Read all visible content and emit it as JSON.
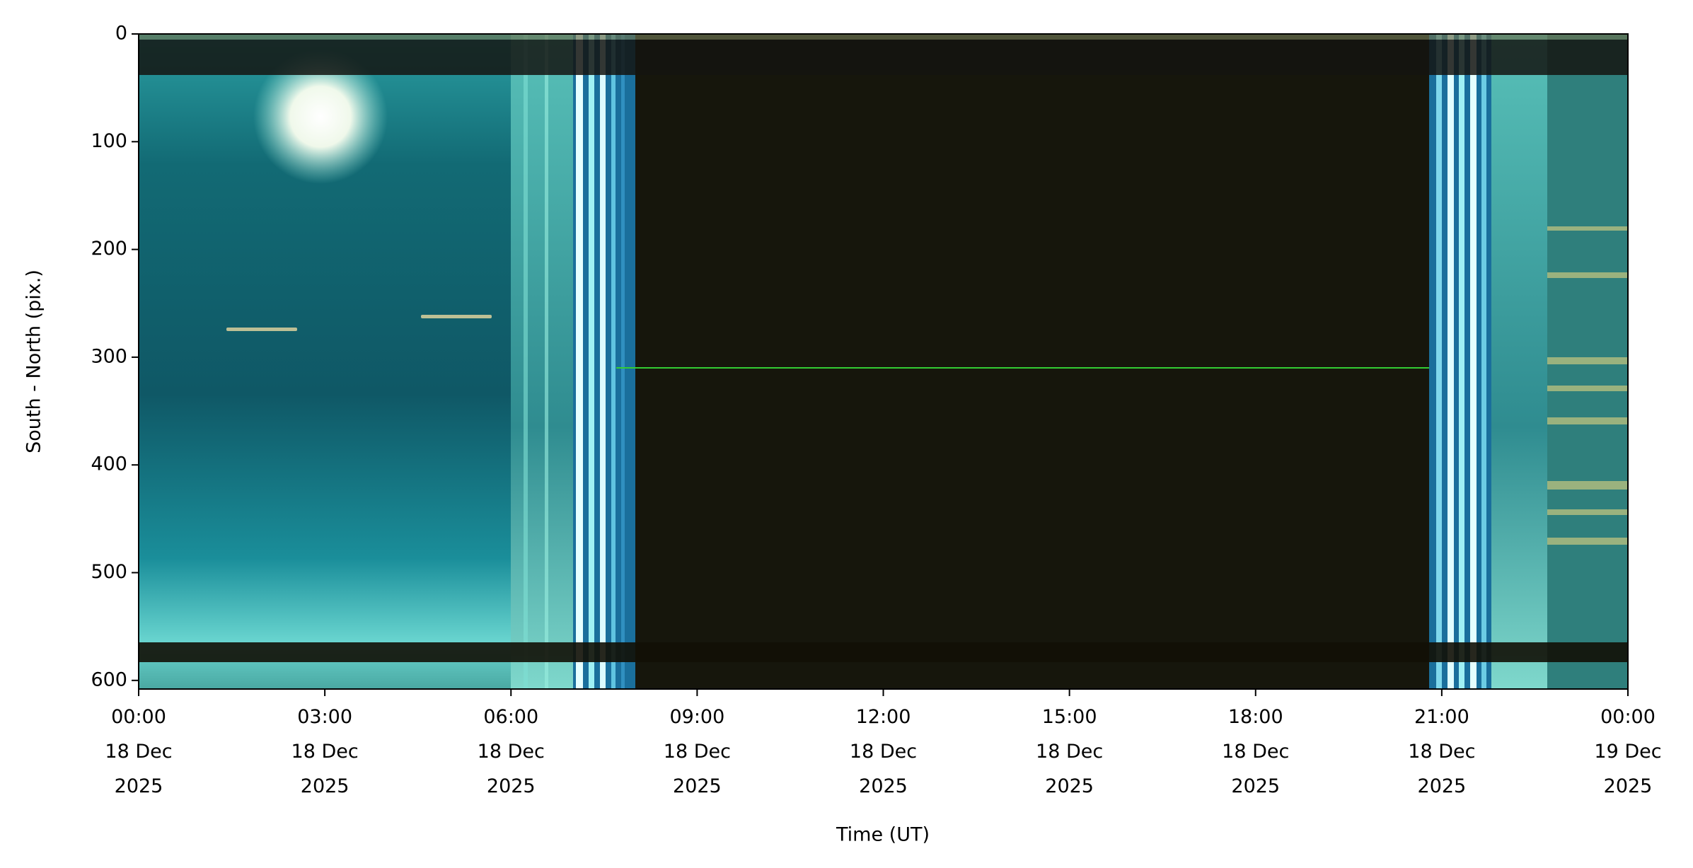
{
  "chart_data": {
    "type": "keogram",
    "xlabel": "Time (UT)",
    "ylabel": "South - North (pix.)",
    "xlim": [
      "2025-12-18T00:00",
      "2025-12-19T00:00"
    ],
    "xticks": [
      {
        "value": "2025-12-18T00:00",
        "label": "00:00\n18 Dec\n2025"
      },
      {
        "value": "2025-12-18T03:00",
        "label": "03:00\n18 Dec\n2025"
      },
      {
        "value": "2025-12-18T06:00",
        "label": "06:00\n18 Dec\n2025"
      },
      {
        "value": "2025-12-18T09:00",
        "label": "09:00\n18 Dec\n2025"
      },
      {
        "value": "2025-12-18T12:00",
        "label": "12:00\n18 Dec\n2025"
      },
      {
        "value": "2025-12-18T15:00",
        "label": "15:00\n18 Dec\n2025"
      },
      {
        "value": "2025-12-18T18:00",
        "label": "18:00\n18 Dec\n2025"
      },
      {
        "value": "2025-12-18T21:00",
        "label": "21:00\n18 Dec\n2025"
      },
      {
        "value": "2025-12-19T00:00",
        "label": "00:00\n19 Dec\n2025"
      }
    ],
    "ylim": [
      0,
      608
    ],
    "y_inverted": true,
    "yticks": [
      0,
      100,
      200,
      300,
      400,
      500,
      600
    ]
  }
}
